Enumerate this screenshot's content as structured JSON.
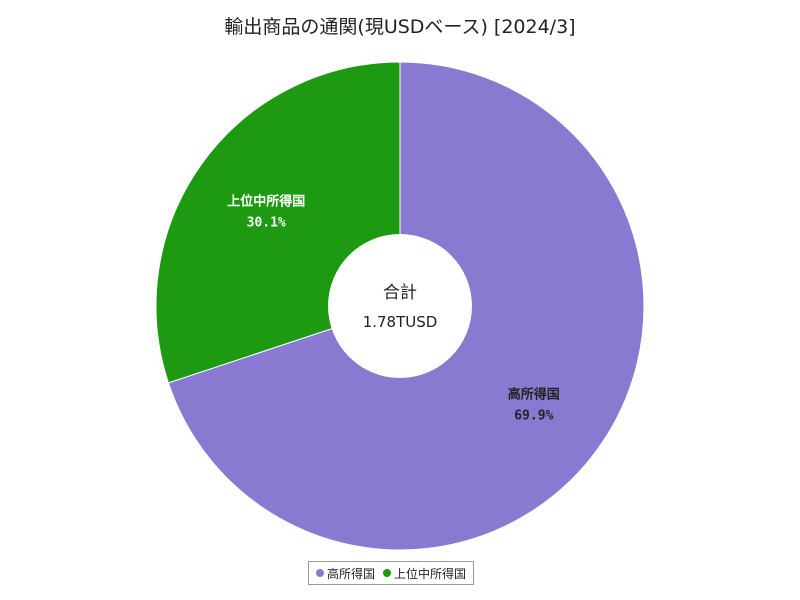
{
  "chart_data": {
    "type": "pie",
    "title": "輸出商品の通関(現USDベース) [2024/3]",
    "center_label": "合計",
    "center_value": "1.78TUSD",
    "series": [
      {
        "name": "高所得国",
        "percent": 69.9,
        "label": "69.9%",
        "color": "#8a79d1"
      },
      {
        "name": "上位中所得国",
        "percent": 30.1,
        "label": "30.1%",
        "color": "#1e9a12"
      }
    ],
    "legend_position": "bottom"
  }
}
